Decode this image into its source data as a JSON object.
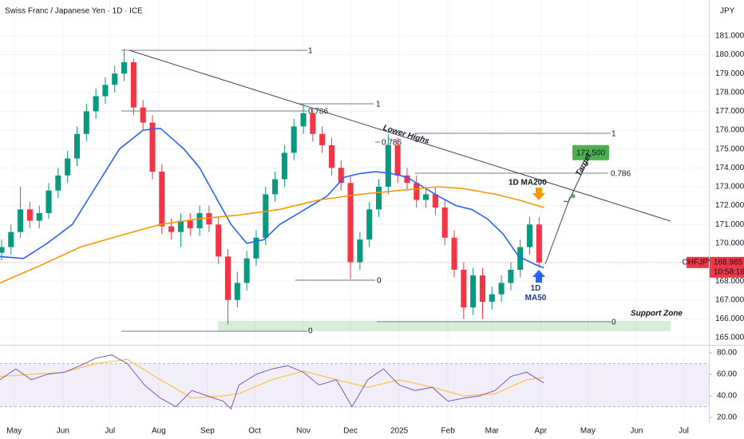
{
  "chart_data": {
    "type": "candlestick",
    "title": "Swiss Franc / Japanese Yen · 1D · ICE",
    "currency": "JPY",
    "symbol": "CHFJPY",
    "time": "10:58:16",
    "last_price": {
      "value": 168.985,
      "label": "168.985"
    },
    "up_color": "#089981",
    "down_color": "#f23645",
    "x": [
      22,
      28,
      34,
      40,
      46,
      52,
      58,
      64,
      70,
      76,
      82,
      88,
      94,
      100,
      106,
      112,
      118,
      124,
      130,
      136,
      142,
      148,
      154,
      160,
      166,
      172,
      178,
      184,
      190,
      196,
      202,
      208,
      214,
      220,
      226,
      232,
      238,
      244,
      250,
      256,
      262,
      268,
      274,
      280,
      286,
      292,
      298,
      304,
      310,
      316,
      322,
      328,
      334,
      340,
      346,
      352,
      358,
      364
    ],
    "open": [
      169.5,
      169.8,
      170.6,
      171.8,
      171.2,
      171.6,
      172.8,
      173.6,
      174.5,
      175.8,
      177.0,
      177.8,
      178.4,
      179.0,
      179.6,
      177.2,
      176.4,
      173.8,
      170.9,
      170.6,
      171.2,
      170.8,
      171.6,
      171.0,
      169.3,
      167.0,
      167.9,
      169.2,
      170.3,
      172.6,
      173.4,
      174.8,
      176.2,
      176.9,
      175.8,
      175.2,
      174.0,
      173.2,
      169.0,
      170.2,
      171.8,
      173.0,
      175.2,
      173.6,
      173.2,
      172.3,
      172.6,
      171.9,
      170.3,
      168.6,
      166.6,
      168.3,
      166.9,
      167.3,
      167.9,
      168.6,
      169.8,
      171.0
    ],
    "high": [
      170.2,
      171.0,
      173.0,
      172.2,
      172.0,
      173.2,
      174.0,
      174.9,
      176.2,
      177.4,
      178.2,
      178.8,
      179.4,
      180.3,
      179.8,
      177.6,
      176.8,
      174.2,
      171.3,
      171.6,
      171.6,
      172.0,
      172.0,
      171.4,
      169.7,
      168.5,
      169.6,
      170.7,
      173.0,
      173.8,
      175.2,
      176.6,
      177.3,
      177.2,
      176.2,
      175.6,
      174.4,
      173.6,
      170.6,
      172.2,
      173.4,
      175.8,
      175.6,
      174.0,
      173.6,
      173.0,
      173.0,
      172.3,
      170.7,
      169.0,
      168.7,
      168.7,
      167.7,
      168.3,
      169.0,
      170.2,
      171.4,
      171.4
    ],
    "low": [
      169.1,
      169.4,
      170.3,
      170.8,
      170.8,
      171.3,
      172.4,
      173.2,
      174.1,
      175.4,
      176.6,
      177.4,
      178.0,
      178.6,
      176.8,
      176.0,
      173.4,
      170.5,
      170.2,
      169.8,
      170.4,
      170.4,
      170.6,
      168.9,
      165.7,
      166.6,
      167.5,
      168.8,
      169.9,
      172.2,
      173.0,
      174.4,
      175.8,
      175.4,
      174.8,
      173.6,
      172.8,
      168.1,
      168.6,
      169.8,
      171.4,
      172.6,
      173.2,
      172.8,
      171.9,
      171.9,
      171.5,
      169.9,
      168.2,
      166.0,
      166.2,
      166.0,
      166.5,
      166.9,
      167.5,
      168.2,
      169.4,
      168.7
    ],
    "close": [
      169.8,
      170.6,
      171.8,
      171.2,
      171.6,
      172.8,
      173.6,
      174.5,
      175.8,
      177.0,
      177.8,
      178.4,
      179.0,
      179.6,
      177.2,
      176.4,
      173.8,
      170.9,
      170.6,
      171.2,
      170.8,
      171.6,
      171.0,
      169.3,
      167.0,
      167.9,
      169.2,
      170.3,
      172.6,
      173.4,
      174.8,
      176.2,
      176.9,
      175.8,
      175.2,
      174.0,
      173.2,
      169.0,
      170.2,
      171.8,
      173.0,
      175.2,
      173.6,
      173.2,
      172.3,
      172.6,
      171.9,
      170.3,
      168.6,
      166.6,
      168.3,
      166.9,
      167.3,
      167.9,
      168.6,
      169.8,
      171.0,
      168.985
    ],
    "series": [
      {
        "name": "1D MA50",
        "color": "#2962ff",
        "x": [
          21,
          36,
          51,
          67,
          82,
          97,
          112,
          123,
          138,
          148,
          158,
          168,
          178,
          189,
          199,
          209,
          219,
          229,
          240,
          250,
          260,
          270,
          280,
          290,
          300,
          311,
          321,
          331,
          341,
          351,
          361,
          367
        ],
        "values": [
          169.3,
          169.2,
          170.0,
          171.0,
          173.0,
          175.0,
          176.0,
          176.1,
          175.0,
          174.0,
          172.5,
          171.0,
          170.0,
          170.2,
          171.0,
          171.5,
          172.0,
          172.5,
          173.5,
          173.7,
          173.8,
          173.7,
          173.5,
          173.0,
          172.5,
          172.0,
          171.8,
          171.3,
          170.5,
          169.3,
          168.9,
          168.7
        ]
      },
      {
        "name": "1D MA200",
        "color": "#ff9800",
        "x": [
          21,
          46,
          72,
          97,
          123,
          148,
          173,
          199,
          224,
          250,
          275,
          300,
          316,
          336,
          351,
          367
        ],
        "values": [
          167.9,
          168.8,
          169.8,
          170.4,
          171.0,
          171.3,
          171.5,
          171.8,
          172.3,
          172.6,
          172.8,
          173.0,
          172.9,
          172.6,
          172.3,
          171.9
        ]
      }
    ],
    "ylim": [
      164.62,
      182.9
    ],
    "yticks": [
      {
        "value": 165,
        "label": "165.000"
      },
      {
        "value": 166,
        "label": "166.000"
      },
      {
        "value": 167,
        "label": "167.000"
      },
      {
        "value": 168,
        "label": "168.000"
      },
      {
        "value": 169,
        "label": "169.000"
      },
      {
        "value": 170,
        "label": "170.000"
      },
      {
        "value": 171,
        "label": "171.000"
      },
      {
        "value": 172,
        "label": "172.000"
      },
      {
        "value": 173,
        "label": "173.000"
      },
      {
        "value": 174,
        "label": "174.000"
      },
      {
        "value": 175,
        "label": "175.000"
      },
      {
        "value": 176,
        "label": "176.000"
      },
      {
        "value": 177,
        "label": "177.000"
      },
      {
        "value": 178,
        "label": "178.000"
      },
      {
        "value": 179,
        "label": "179.000"
      },
      {
        "value": 180,
        "label": "180.000"
      },
      {
        "value": 181,
        "label": "181.000"
      }
    ],
    "xlim": [
      21,
      472
    ],
    "xticks": [
      {
        "value": 30,
        "label": "May"
      },
      {
        "value": 61,
        "label": "Jun"
      },
      {
        "value": 91,
        "label": "Jul"
      },
      {
        "value": 122,
        "label": "Aug"
      },
      {
        "value": 153,
        "label": "Sep"
      },
      {
        "value": 183,
        "label": "Oct"
      },
      {
        "value": 214,
        "label": "Nov"
      },
      {
        "value": 244,
        "label": "Dec"
      },
      {
        "value": 275,
        "label": "2025"
      },
      {
        "value": 306,
        "label": "Feb"
      },
      {
        "value": 334,
        "label": "Mar"
      },
      {
        "value": 365,
        "label": "Apr"
      },
      {
        "value": 395,
        "label": "May"
      },
      {
        "value": 426,
        "label": "Jun"
      },
      {
        "value": 456,
        "label": "Jul"
      }
    ],
    "grid": true,
    "annotations": {
      "trend_label": "Lower Highs",
      "target_label": "Target",
      "target_price": {
        "value": 172.5,
        "label": "172.500"
      },
      "support_label": "Support Zone",
      "fib_levels": [
        [
          1,
          0.786,
          0
        ],
        [
          1,
          0.786,
          0
        ],
        [
          1,
          0.786,
          0
        ]
      ]
    },
    "rsi": {
      "color": "#7e57c2",
      "ma_color": "#f7c548",
      "x": [
        21,
        31,
        41,
        51,
        62,
        72,
        82,
        92,
        102,
        113,
        123,
        133,
        143,
        153,
        163,
        168,
        173,
        184,
        194,
        204,
        214,
        224,
        235,
        245,
        255,
        265,
        275,
        285,
        296,
        306,
        316,
        326,
        336,
        346,
        356,
        367
      ],
      "values": [
        55,
        65,
        55,
        60,
        62,
        68,
        75,
        78,
        70,
        50,
        38,
        30,
        45,
        40,
        35,
        28,
        50,
        60,
        65,
        68,
        62,
        50,
        55,
        30,
        55,
        65,
        50,
        45,
        48,
        35,
        38,
        40,
        45,
        58,
        62,
        52
      ],
      "ma_x": [
        21,
        41,
        62,
        82,
        102,
        123,
        143,
        163,
        173,
        194,
        214,
        235,
        255,
        275,
        296,
        316,
        336,
        356,
        367
      ],
      "ma_values": [
        58,
        60,
        62,
        70,
        74,
        55,
        38,
        40,
        42,
        55,
        63,
        55,
        48,
        55,
        48,
        40,
        42,
        55,
        57
      ],
      "band": [
        30,
        70
      ],
      "ylim": [
        14.8,
        87.4
      ],
      "yticks": [
        {
          "value": 20,
          "label": "20.00"
        },
        {
          "value": 40,
          "label": "40.00"
        },
        {
          "value": 60,
          "label": "60.00"
        },
        {
          "value": 80,
          "label": "80.00"
        }
      ]
    }
  }
}
